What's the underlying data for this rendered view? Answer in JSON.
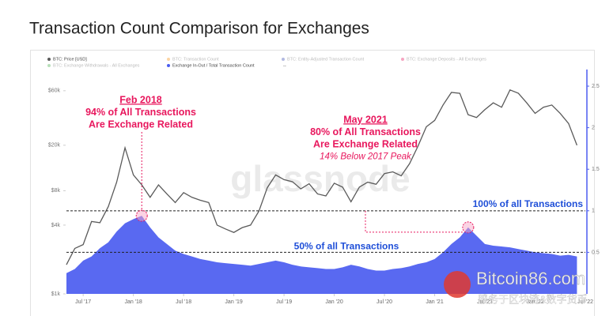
{
  "title": "Transaction Count Comparison for Exchanges",
  "chart_data": {
    "type": "line-area",
    "x": [
      "2017-05",
      "2017-06",
      "2017-07",
      "2017-08",
      "2017-09",
      "2017-10",
      "2017-11",
      "2017-12",
      "2018-01",
      "2018-02",
      "2018-03",
      "2018-04",
      "2018-05",
      "2018-06",
      "2018-07",
      "2018-08",
      "2018-09",
      "2018-10",
      "2018-11",
      "2018-12",
      "2019-01",
      "2019-02",
      "2019-03",
      "2019-04",
      "2019-05",
      "2019-06",
      "2019-07",
      "2019-08",
      "2019-09",
      "2019-10",
      "2019-11",
      "2019-12",
      "2020-01",
      "2020-02",
      "2020-03",
      "2020-04",
      "2020-05",
      "2020-06",
      "2020-07",
      "2020-08",
      "2020-09",
      "2020-10",
      "2020-11",
      "2020-12",
      "2021-01",
      "2021-02",
      "2021-03",
      "2021-04",
      "2021-05",
      "2021-06",
      "2021-07",
      "2021-08",
      "2021-09",
      "2021-10",
      "2021-11",
      "2021-12",
      "2022-01",
      "2022-02",
      "2022-03",
      "2022-04",
      "2022-05",
      "2022-06"
    ],
    "xlim": [
      "2017-05",
      "2022-07"
    ],
    "xticks": [
      {
        "value": "2017-07",
        "label": "Jul '17"
      },
      {
        "value": "2018-01",
        "label": "Jan '18"
      },
      {
        "value": "2018-07",
        "label": "Jul '18"
      },
      {
        "value": "2019-01",
        "label": "Jan '19"
      },
      {
        "value": "2019-07",
        "label": "Jul '19"
      },
      {
        "value": "2020-01",
        "label": "Jan '20"
      },
      {
        "value": "2020-07",
        "label": "Jul '20"
      },
      {
        "value": "2021-01",
        "label": "Jan '21"
      },
      {
        "value": "2021-07",
        "label": "Jul '21"
      },
      {
        "value": "2022-01",
        "label": "Jan '22"
      },
      {
        "value": "2022-07",
        "label": "Jul '22"
      }
    ],
    "ylim": [
      1000,
      92000
    ],
    "log_y": true,
    "yticks": [
      {
        "value": 1000,
        "label": "$1k"
      },
      {
        "value": 4000,
        "label": "$4k"
      },
      {
        "value": 8000,
        "label": "$8k"
      },
      {
        "value": 20000,
        "label": "$20k"
      },
      {
        "value": 60000,
        "label": "$60k"
      }
    ],
    "y2lim": [
      0,
      2.7
    ],
    "y2ticks": [
      0.5,
      1,
      1.5,
      2,
      2.5
    ],
    "series": [
      {
        "name": "BTC: Price [USD]",
        "color": "#5a5a5a",
        "values": [
          1800,
          2500,
          2700,
          4300,
          4200,
          5800,
          9500,
          19000,
          11000,
          9000,
          7000,
          9000,
          7500,
          6300,
          7700,
          7000,
          6600,
          6300,
          4000,
          3700,
          3450,
          3800,
          4000,
          5300,
          8500,
          11000,
          10000,
          9600,
          8300,
          9200,
          7500,
          7200,
          9300,
          8600,
          6400,
          8600,
          9500,
          9100,
          11300,
          11700,
          10800,
          13800,
          19600,
          29000,
          33000,
          45000,
          58000,
          57000,
          37000,
          35000,
          41000,
          47000,
          43000,
          61000,
          57000,
          47000,
          38000,
          43000,
          45000,
          38000,
          31000,
          20000
        ]
      },
      {
        "name": "Exchange In-Out / Total Transaction Count",
        "color": "#4b5cf0",
        "axis": "y2",
        "values": [
          0.25,
          0.3,
          0.4,
          0.45,
          0.55,
          0.62,
          0.75,
          0.85,
          0.9,
          0.94,
          0.8,
          0.68,
          0.6,
          0.52,
          0.48,
          0.45,
          0.42,
          0.4,
          0.38,
          0.37,
          0.36,
          0.35,
          0.34,
          0.36,
          0.38,
          0.4,
          0.38,
          0.35,
          0.33,
          0.32,
          0.31,
          0.3,
          0.3,
          0.32,
          0.35,
          0.33,
          0.3,
          0.28,
          0.28,
          0.3,
          0.31,
          0.33,
          0.36,
          0.38,
          0.42,
          0.5,
          0.6,
          0.68,
          0.8,
          0.7,
          0.6,
          0.58,
          0.57,
          0.56,
          0.54,
          0.52,
          0.5,
          0.49,
          0.48,
          0.46,
          0.47,
          0.45
        ]
      }
    ],
    "hidden_series": [
      {
        "name": "BTC: Transaction Count",
        "color": "#f7931a"
      },
      {
        "name": "BTC: Entity-Adjusted Transaction Count",
        "color": "#3f51b5"
      },
      {
        "name": "BTC: Exchange Deposits - All Exchanges",
        "color": "#e91e63"
      },
      {
        "name": "BTC: Exchange Withdrawals - All Exchanges",
        "color": "#4caf50"
      }
    ],
    "legend_more": "--",
    "ref_lines": [
      {
        "value": 1,
        "label": "100% of all Transactions"
      },
      {
        "value": 0.5,
        "label": "50% of all Transactions"
      }
    ],
    "annotations": [
      {
        "x": "2018-02",
        "heading": "Feb 2018",
        "lines": [
          "94% of All Transactions",
          "Are Exchange Related"
        ]
      },
      {
        "x": "2021-05",
        "heading": "May 2021",
        "lines": [
          "80% of All Transactions",
          "Are Exchange Related",
          "14% Below 2017 Peak"
        ]
      }
    ],
    "grid": false
  },
  "watermarks": {
    "brand": "glassnode",
    "site": "Bitcoin86.com",
    "slogan": "服务于区块链&数字货币"
  }
}
